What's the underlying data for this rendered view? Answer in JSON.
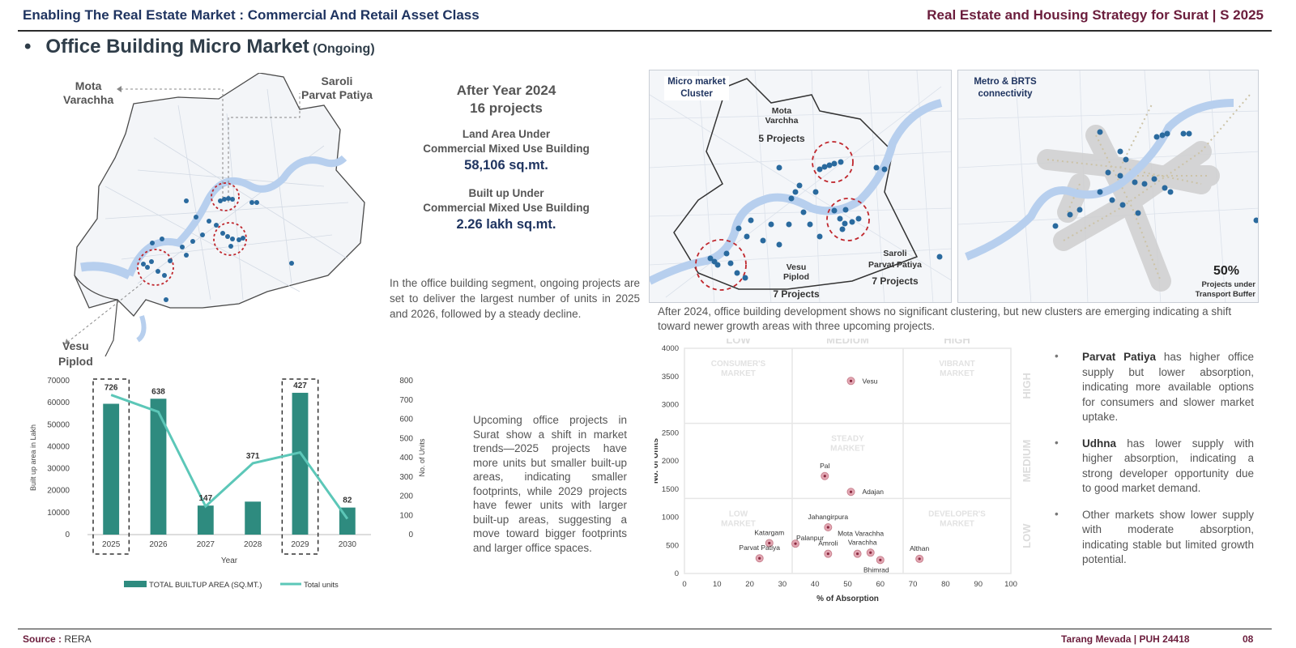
{
  "header": {
    "left_title": "Enabling The Real Estate Market : Commercial And Retail Asset Class",
    "right_title": "Real Estate and Housing Strategy for Surat | S 2025"
  },
  "section": {
    "bullet": "•",
    "title": "Office Building Micro Market",
    "title_suffix": "(Ongoing)"
  },
  "left_map": {
    "label_mota": "Mota\nVarachha",
    "label_saroli": "Saroli\nParvat Patiya",
    "label_vesu": "Vesu\nPiplod"
  },
  "stats": {
    "year_line": "After Year 2024",
    "projects_line": "16 projects",
    "land_label": "Land Area Under\nCommercial Mixed Use Building",
    "land_value": "58,106 sq.mt.",
    "builtup_label": "Built up Under\nCommercial Mixed Use Building",
    "builtup_value": "2.26 lakh sq.mt."
  },
  "text_office": "In the office building segment, ongoing projects are set to deliver the largest number of units in 2025 and 2026, followed by a steady decline.",
  "text_upcoming": "Upcoming office projects in Surat show a shift in market trends—2025 projects have more units but smaller built-up areas, indicating smaller footprints, while 2029 projects have fewer units with larger built-up areas, suggesting a move toward bigger footprints and larger office spaces.",
  "map_cluster": {
    "title": "Micro market\nCluster",
    "mota_name": "Mota\nVarchha",
    "mota_count": "5 Projects",
    "vesu_name": "Vesu\nPiplod",
    "vesu_count": "7 Projects",
    "saroli_name": "Saroli\nParvat Patiya",
    "saroli_count": "7 Projects"
  },
  "map_metro": {
    "title": "Metro & BRTS\nconnectivity",
    "pct": "50%",
    "pct_label": "Projects under\nTransport Buffer"
  },
  "text_after2024": "After 2024, office building development shows no significant clustering, but new clusters are emerging indicating a shift toward newer growth areas with three upcoming projects.",
  "bullets": [
    {
      "bold": "Parvat Patiya",
      "text": " has higher office supply but lower absorption, indicating more available options for consumers and slower market uptake."
    },
    {
      "bold": "Udhna",
      "text": " has lower supply with higher absorption, indicating a strong developer opportunity due to good market demand."
    },
    {
      "bold": "",
      "text": "Other markets show lower supply with moderate absorption, indicating stable but limited growth potential."
    }
  ],
  "footer": {
    "source_label": "Source :",
    "source_value": " RERA",
    "author": "Tarang Mevada | PUH 24418",
    "page": "08"
  },
  "chart_data": [
    {
      "type": "bar",
      "categories": [
        "2025",
        "2026",
        "2027",
        "2028",
        "2029",
        "2030"
      ],
      "series": [
        {
          "name": "TOTAL BUILTUP AREA (SQ.MT.)",
          "type": "bar",
          "axis": "left",
          "values": [
            59500,
            61800,
            13200,
            15000,
            64500,
            12300
          ],
          "color": "#2e8b7f"
        },
        {
          "name": "Total units",
          "type": "line",
          "axis": "right",
          "values": [
            726,
            638,
            147,
            371,
            427,
            82
          ],
          "color": "#5cc7b8"
        }
      ],
      "data_labels": [
        "726",
        "638",
        "147",
        "371",
        "427",
        "82"
      ],
      "xlabel": "Year",
      "ylabel": "Built up area in Lakh",
      "y2label": "No. of Units",
      "ylim": [
        0,
        70000
      ],
      "y2lim": [
        0,
        800
      ],
      "yticks": [
        "0",
        "10000",
        "20000",
        "30000",
        "40000",
        "50000",
        "60000",
        "70000"
      ],
      "y2ticks": [
        "0",
        "100",
        "200",
        "300",
        "400",
        "500",
        "600",
        "700",
        "800"
      ],
      "highlighted": [
        "2025",
        "2029"
      ],
      "legend": "bottom"
    },
    {
      "type": "scatter",
      "xlabel": "% of Absorption",
      "ylabel": "No. of Units",
      "xlim": [
        0,
        100
      ],
      "ylim": [
        0,
        4000
      ],
      "xticks": [
        "0",
        "10",
        "20",
        "30",
        "40",
        "50",
        "60",
        "70",
        "80",
        "90",
        "100"
      ],
      "yticks": [
        "0",
        "500",
        "1000",
        "1500",
        "2000",
        "2500",
        "3000",
        "3500",
        "4000"
      ],
      "points": [
        {
          "label": "Vesu",
          "x": 51,
          "y": 3420
        },
        {
          "label": "Pal",
          "x": 43,
          "y": 1730
        },
        {
          "label": "Adajan",
          "x": 51,
          "y": 1450
        },
        {
          "label": "Jahangirpura",
          "x": 44,
          "y": 820
        },
        {
          "label": "Katargam",
          "x": 26,
          "y": 540
        },
        {
          "label": "Palanpur",
          "x": 34,
          "y": 530
        },
        {
          "label": "Parvat Patiya",
          "x": 23,
          "y": 270
        },
        {
          "label": "Amroli",
          "x": 44,
          "y": 350
        },
        {
          "label": "Mota Varachha",
          "x": 53,
          "y": 350
        },
        {
          "label": "Varachha",
          "x": 57,
          "y": 370
        },
        {
          "label": "Bhimrad",
          "x": 60,
          "y": 240
        },
        {
          "label": "Althan",
          "x": 72,
          "y": 260
        }
      ],
      "columns": [
        "LOW",
        "MEDIUM",
        "HIGH"
      ],
      "rows": [
        "HIGH",
        "MEDIUM",
        "LOW"
      ],
      "zones": [
        "CONSUMER'S\nMARKET",
        "VIBRANT\nMARKET",
        "STEADY\nMARKET",
        "LOW\nMARKET",
        "DEVELOPER'S\nMARKET"
      ],
      "grid": true
    }
  ]
}
